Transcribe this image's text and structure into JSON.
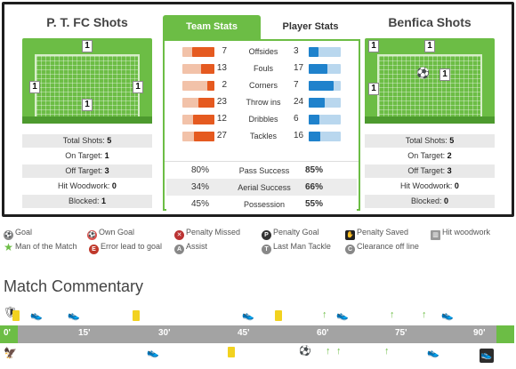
{
  "home": {
    "title": "P. T. FC Shots",
    "pitch_markers": [
      "1",
      "1",
      "1",
      "1"
    ],
    "shots": [
      {
        "label": "Total Shots:",
        "value": "5"
      },
      {
        "label": "On Target:",
        "value": "1"
      },
      {
        "label": "Off Target:",
        "value": "3"
      },
      {
        "label": "Hit Woodwork:",
        "value": "0"
      },
      {
        "label": "Blocked:",
        "value": "1"
      }
    ]
  },
  "away": {
    "title": "Benfica Shots",
    "pitch_markers": [
      "1",
      "1",
      "1",
      "1"
    ],
    "shots": [
      {
        "label": "Total Shots:",
        "value": "5"
      },
      {
        "label": "On Target:",
        "value": "2"
      },
      {
        "label": "Off Target:",
        "value": "3"
      },
      {
        "label": "Hit Woodwork:",
        "value": "0"
      },
      {
        "label": "Blocked:",
        "value": "0"
      }
    ]
  },
  "tabs": {
    "team": "Team Stats",
    "player": "Player Stats"
  },
  "stats": [
    {
      "label": "Offsides",
      "home": "7",
      "away": "3",
      "home_frac": 0.7,
      "away_frac": 0.3
    },
    {
      "label": "Fouls",
      "home": "13",
      "away": "17",
      "home_frac": 0.43,
      "away_frac": 0.57
    },
    {
      "label": "Corners",
      "home": "2",
      "away": "7",
      "home_frac": 0.22,
      "away_frac": 0.78
    },
    {
      "label": "Throw ins",
      "home": "23",
      "away": "24",
      "home_frac": 0.49,
      "away_frac": 0.51
    },
    {
      "label": "Dribbles",
      "home": "12",
      "away": "6",
      "home_frac": 0.67,
      "away_frac": 0.33
    },
    {
      "label": "Tackles",
      "home": "27",
      "away": "16",
      "home_frac": 0.63,
      "away_frac": 0.37
    }
  ],
  "percent_stats": [
    {
      "label": "Pass Success",
      "home": "80%",
      "away": "85%"
    },
    {
      "label": "Aerial Success",
      "home": "34%",
      "away": "66%"
    },
    {
      "label": "Possession",
      "home": "45%",
      "away": "55%"
    }
  ],
  "legend": [
    {
      "label": "Goal",
      "icon": "goal-icon"
    },
    {
      "label": "Own Goal",
      "icon": "own-goal-icon"
    },
    {
      "label": "Penalty Missed",
      "icon": "penalty-missed-icon"
    },
    {
      "label": "Penalty Goal",
      "icon": "penalty-goal-icon"
    },
    {
      "label": "Penalty Saved",
      "icon": "penalty-saved-icon"
    },
    {
      "label": "Hit woodwork",
      "icon": "hit-woodwork-icon"
    },
    {
      "label": "Man of the Match",
      "icon": "star-icon"
    },
    {
      "label": "Error lead to goal",
      "icon": "error-icon"
    },
    {
      "label": "Assist",
      "icon": "assist-icon"
    },
    {
      "label": "Last Man Tackle",
      "icon": "last-man-tackle-icon"
    },
    {
      "label": "Clearance off line",
      "icon": "clearance-icon"
    }
  ],
  "commentary": {
    "title": "Match Commentary",
    "ticks": [
      "0'",
      "15'",
      "30'",
      "45'",
      "60'",
      "75'",
      "90'"
    ],
    "colors": {
      "green": "#6cbd45",
      "timeline": "#a3a3a3",
      "home_bar": "#e55a20",
      "away_bar": "#1f82cc"
    }
  }
}
